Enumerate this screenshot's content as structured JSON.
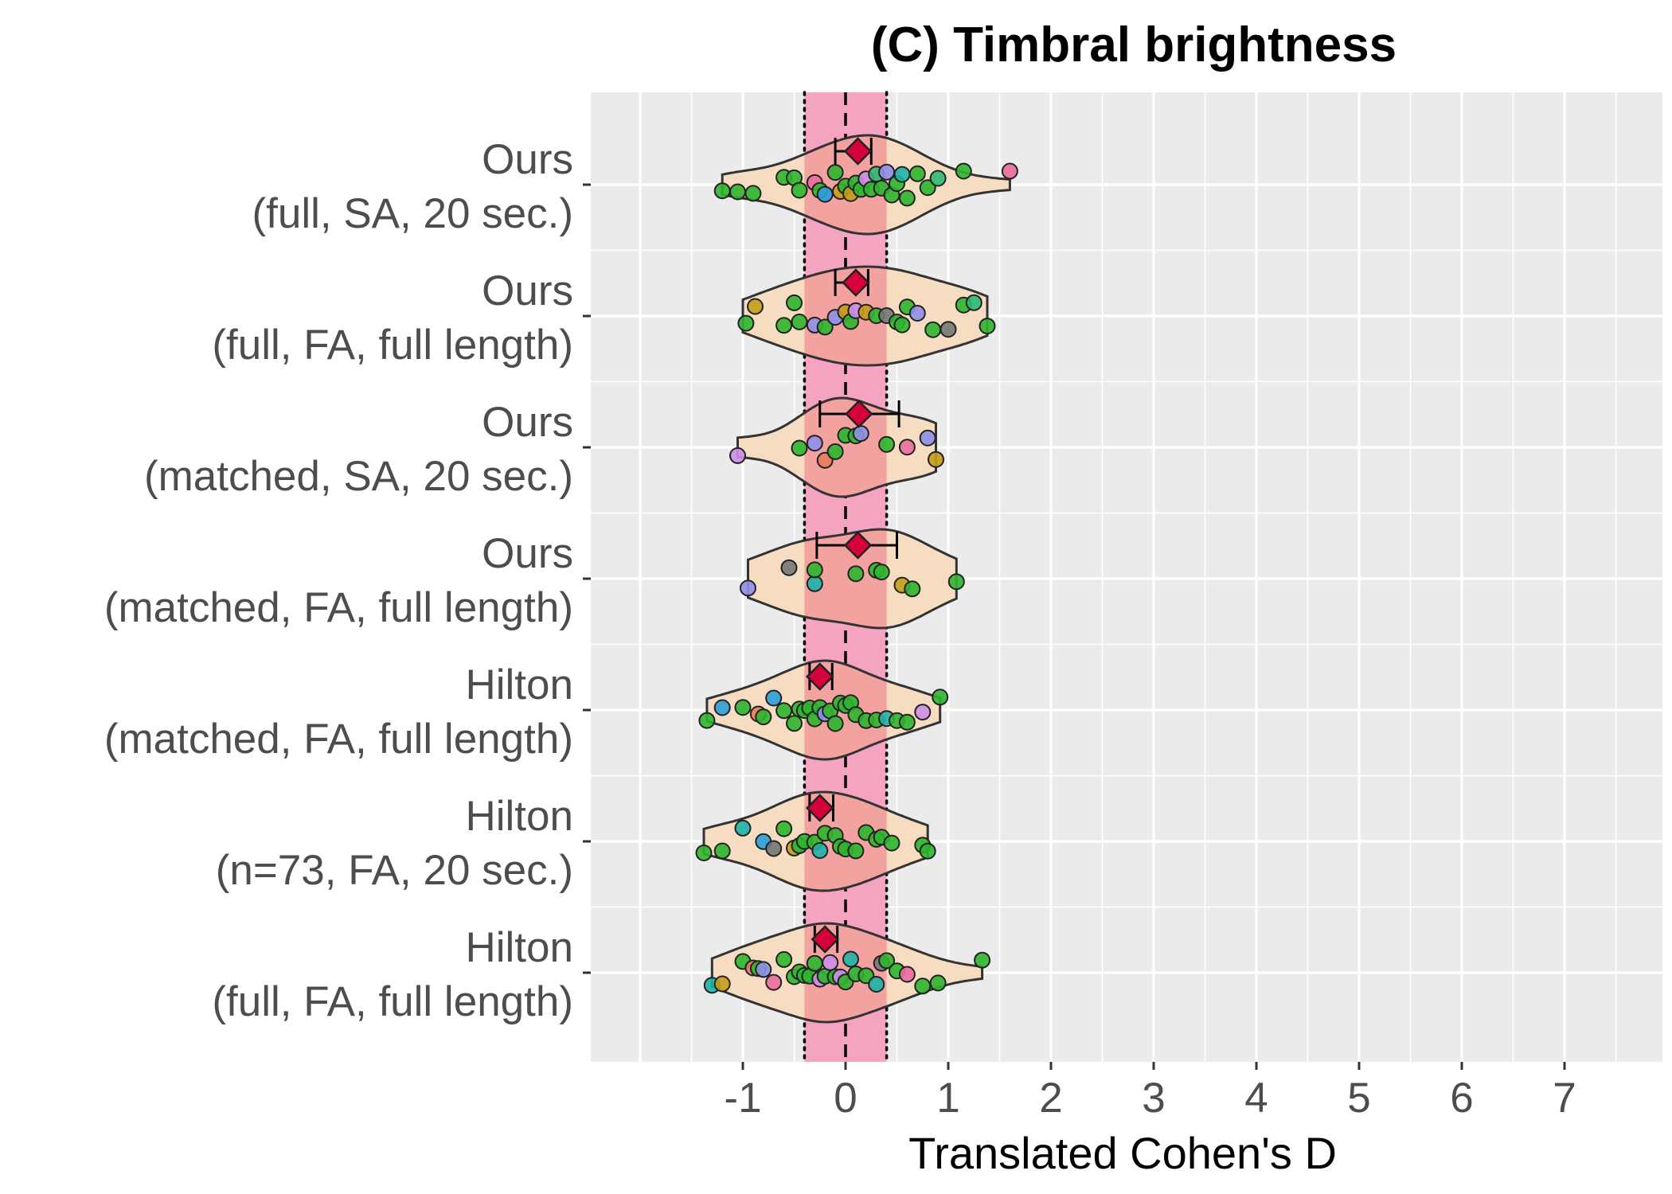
{
  "chart_data": {
    "type": "violin",
    "title": "(C) Timbral brightness",
    "xlabel": "Translated Cohen's D",
    "ylabel": "",
    "xlim": [
      -2.0,
      7.8
    ],
    "x_ticks": [
      "-1",
      "0",
      "1",
      "2",
      "3",
      "4",
      "5",
      "6",
      "7"
    ],
    "x_tick_values": [
      -1,
      0,
      1,
      2,
      3,
      4,
      5,
      6,
      7
    ],
    "grid": true,
    "reference_band": {
      "from": -0.4,
      "to": 0.4,
      "color": "#f4a3c0"
    },
    "reference_lines": {
      "dashed": 0,
      "dotted": [
        -0.4,
        0.4
      ]
    },
    "colors": {
      "panel": "#ebebeb",
      "violin_fill": "#f6dcc0",
      "violin_core": "#f2a3a0",
      "mean_marker": "#d6003a",
      "point_main": "#2db52d",
      "point_palette": [
        "#2db52d",
        "#2eb872",
        "#1db3a6",
        "#2b9fd9",
        "#c59c18",
        "#cc8ee8",
        "#e96d9c",
        "#e8795f",
        "#777777",
        "#8f8fe8"
      ]
    },
    "categories": [
      {
        "label_top": "Ours",
        "label_bottom": "(full, SA, 20 sec.)",
        "mean": 0.12,
        "ci": [
          -0.1,
          0.25
        ],
        "range": [
          -1.2,
          1.6
        ],
        "values": [
          -1.2,
          -1.05,
          -0.9,
          -0.6,
          -0.5,
          -0.45,
          -0.3,
          -0.25,
          -0.2,
          -0.1,
          -0.05,
          0.0,
          0.05,
          0.1,
          0.15,
          0.2,
          0.25,
          0.3,
          0.35,
          0.4,
          0.45,
          0.5,
          0.55,
          0.6,
          0.7,
          0.8,
          0.9,
          1.15,
          1.6
        ]
      },
      {
        "label_top": "Ours",
        "label_bottom": "(full, FA, full length)",
        "mean": 0.1,
        "ci": [
          -0.1,
          0.22
        ],
        "range": [
          -1.0,
          1.38
        ],
        "values": [
          -0.97,
          -0.88,
          -0.6,
          -0.5,
          -0.45,
          -0.3,
          -0.2,
          -0.1,
          0.0,
          0.05,
          0.1,
          0.2,
          0.3,
          0.4,
          0.5,
          0.55,
          0.6,
          0.7,
          0.85,
          1.0,
          1.15,
          1.25,
          1.38
        ]
      },
      {
        "label_top": "Ours",
        "label_bottom": "(matched, SA, 20 sec.)",
        "mean": 0.13,
        "ci": [
          -0.25,
          0.52
        ],
        "range": [
          -1.05,
          0.88
        ],
        "values": [
          -1.05,
          -0.45,
          -0.3,
          -0.2,
          -0.1,
          0.0,
          0.1,
          0.15,
          0.4,
          0.6,
          0.8,
          0.88
        ]
      },
      {
        "label_top": "Ours",
        "label_bottom": "(matched, FA, full length)",
        "mean": 0.12,
        "ci": [
          -0.28,
          0.5
        ],
        "range": [
          -0.95,
          1.08
        ],
        "values": [
          -0.95,
          -0.55,
          -0.3,
          -0.3,
          0.1,
          0.3,
          0.35,
          0.55,
          0.65,
          1.08
        ]
      },
      {
        "label_top": "Hilton",
        "label_bottom": "(matched, FA, full length)",
        "mean": -0.25,
        "ci": [
          -0.35,
          -0.13
        ],
        "range": [
          -1.35,
          0.92
        ],
        "values": [
          -1.35,
          -1.2,
          -1.0,
          -0.85,
          -0.8,
          -0.7,
          -0.6,
          -0.5,
          -0.45,
          -0.4,
          -0.35,
          -0.3,
          -0.25,
          -0.2,
          -0.15,
          -0.1,
          -0.05,
          0.0,
          0.05,
          0.1,
          0.2,
          0.3,
          0.4,
          0.5,
          0.6,
          0.75,
          0.92
        ]
      },
      {
        "label_top": "Hilton",
        "label_bottom": "(n=73, FA, 20 sec.)",
        "mean": -0.25,
        "ci": [
          -0.35,
          -0.12
        ],
        "range": [
          -1.38,
          0.8
        ],
        "values": [
          -1.38,
          -1.2,
          -1.0,
          -0.8,
          -0.7,
          -0.6,
          -0.5,
          -0.45,
          -0.4,
          -0.3,
          -0.25,
          -0.2,
          -0.1,
          -0.05,
          0.0,
          0.1,
          0.2,
          0.3,
          0.35,
          0.45,
          0.75,
          0.8
        ]
      },
      {
        "label_top": "Hilton",
        "label_bottom": "(full, FA, full length)",
        "mean": -0.2,
        "ci": [
          -0.3,
          -0.08
        ],
        "range": [
          -1.3,
          1.33
        ],
        "values": [
          -1.3,
          -1.2,
          -1.0,
          -0.9,
          -0.85,
          -0.8,
          -0.7,
          -0.6,
          -0.5,
          -0.45,
          -0.4,
          -0.35,
          -0.3,
          -0.25,
          -0.2,
          -0.15,
          -0.1,
          -0.05,
          0.0,
          0.05,
          0.1,
          0.2,
          0.3,
          0.35,
          0.4,
          0.5,
          0.6,
          0.75,
          0.9,
          1.33
        ]
      }
    ]
  }
}
